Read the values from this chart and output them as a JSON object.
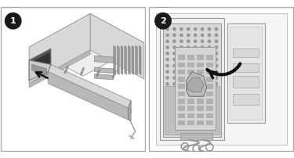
{
  "fig_width": 3.75,
  "fig_height": 2.02,
  "dpi": 100,
  "bg": "#ffffff",
  "border": "#aaaaaa",
  "light": "#eeeeee",
  "mid": "#d8d8d8",
  "dark": "#b8b8b8",
  "darker": "#999999",
  "darkest": "#777777",
  "black": "#1a1a1a",
  "white": "#ffffff",
  "slot_dark": "#555555",
  "slot_mid": "#888888",
  "psu_face": "#cccccc",
  "arrow_black": "#111111",
  "panel_bg": "#f5f5f5"
}
